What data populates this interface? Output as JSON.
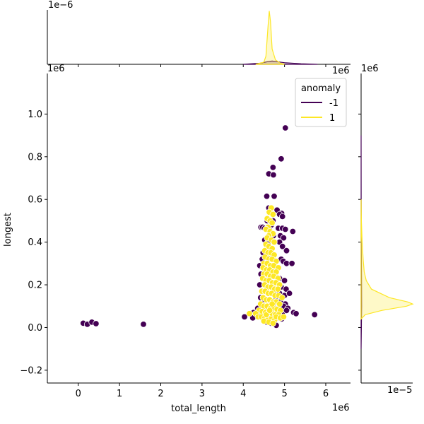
{
  "chart_data": {
    "type": "scatter",
    "subtype": "jointplot",
    "xlabel": "total_length",
    "ylabel": "longest",
    "x_offset_label": "1e6",
    "y_offset_label": "1e6",
    "top_marginal_offset_label": "1e−6",
    "right_marginal_offset_label": "1e−5",
    "right_marginal_top_label": "1e6",
    "xlim": [
      -0.75,
      6.6
    ],
    "ylim": [
      -0.26,
      1.19
    ],
    "x_ticks": [
      0,
      1,
      2,
      3,
      4,
      5,
      6
    ],
    "x_tick_labels": [
      "0",
      "1",
      "2",
      "3",
      "4",
      "5",
      "6"
    ],
    "y_ticks": [
      -0.2,
      0.0,
      0.2,
      0.4,
      0.6,
      0.8,
      1.0
    ],
    "y_tick_labels": [
      "−0.2",
      "0.0",
      "0.2",
      "0.4",
      "0.6",
      "0.8",
      "1.0"
    ],
    "grid": false,
    "legend": {
      "title": "anomaly",
      "position": "top-right",
      "entries": [
        {
          "label": "-1",
          "color": "#440154"
        },
        {
          "label": "1",
          "color": "#fde725"
        }
      ]
    },
    "series": [
      {
        "name": "-1",
        "color": "#440154",
        "points": [
          [
            0.12,
            0.02
          ],
          [
            0.22,
            0.015
          ],
          [
            0.33,
            0.025
          ],
          [
            0.43,
            0.018
          ],
          [
            1.58,
            0.015
          ],
          [
            5.02,
            0.935
          ],
          [
            4.92,
            0.79
          ],
          [
            4.72,
            0.75
          ],
          [
            4.62,
            0.72
          ],
          [
            4.73,
            0.715
          ],
          [
            4.57,
            0.615
          ],
          [
            4.75,
            0.615
          ],
          [
            4.62,
            0.56
          ],
          [
            4.82,
            0.55
          ],
          [
            4.93,
            0.535
          ],
          [
            4.88,
            0.53
          ],
          [
            4.95,
            0.52
          ],
          [
            4.58,
            0.5
          ],
          [
            4.72,
            0.5
          ],
          [
            4.68,
            0.48
          ],
          [
            4.43,
            0.47
          ],
          [
            4.47,
            0.47
          ],
          [
            4.52,
            0.465
          ],
          [
            4.63,
            0.46
          ],
          [
            4.85,
            0.465
          ],
          [
            4.95,
            0.465
          ],
          [
            5.02,
            0.46
          ],
          [
            5.2,
            0.45
          ],
          [
            4.73,
            0.43
          ],
          [
            4.9,
            0.43
          ],
          [
            4.98,
            0.42
          ],
          [
            4.52,
            0.41
          ],
          [
            4.6,
            0.4
          ],
          [
            4.88,
            0.4
          ],
          [
            4.95,
            0.38
          ],
          [
            5.05,
            0.36
          ],
          [
            4.48,
            0.35
          ],
          [
            4.63,
            0.34
          ],
          [
            4.72,
            0.33
          ],
          [
            4.92,
            0.32
          ],
          [
            4.46,
            0.32
          ],
          [
            4.4,
            0.29
          ],
          [
            4.5,
            0.28
          ],
          [
            4.58,
            0.27
          ],
          [
            4.82,
            0.28
          ],
          [
            4.97,
            0.31
          ],
          [
            5.05,
            0.3
          ],
          [
            5.18,
            0.3
          ],
          [
            4.43,
            0.25
          ],
          [
            4.52,
            0.24
          ],
          [
            4.6,
            0.23
          ],
          [
            4.78,
            0.25
          ],
          [
            4.88,
            0.23
          ],
          [
            5.0,
            0.22
          ],
          [
            4.4,
            0.2
          ],
          [
            4.55,
            0.21
          ],
          [
            4.7,
            0.2
          ],
          [
            4.92,
            0.19
          ],
          [
            5.04,
            0.18
          ],
          [
            4.48,
            0.17
          ],
          [
            4.6,
            0.16
          ],
          [
            4.75,
            0.17
          ],
          [
            4.88,
            0.16
          ],
          [
            5.0,
            0.15
          ],
          [
            5.12,
            0.16
          ],
          [
            4.42,
            0.14
          ],
          [
            4.52,
            0.13
          ],
          [
            4.68,
            0.12
          ],
          [
            4.78,
            0.13
          ],
          [
            4.9,
            0.12
          ],
          [
            5.02,
            0.11
          ],
          [
            4.35,
            0.09
          ],
          [
            4.47,
            0.1
          ],
          [
            4.58,
            0.09
          ],
          [
            4.72,
            0.1
          ],
          [
            4.85,
            0.09
          ],
          [
            4.98,
            0.1
          ],
          [
            5.08,
            0.09
          ],
          [
            4.25,
            0.07
          ],
          [
            4.4,
            0.06
          ],
          [
            4.53,
            0.07
          ],
          [
            4.65,
            0.06
          ],
          [
            4.8,
            0.07
          ],
          [
            4.95,
            0.06
          ],
          [
            5.05,
            0.08
          ],
          [
            5.22,
            0.07
          ],
          [
            5.28,
            0.065
          ],
          [
            4.03,
            0.05
          ],
          [
            4.23,
            0.045
          ],
          [
            4.52,
            0.04
          ],
          [
            4.62,
            0.035
          ],
          [
            4.7,
            0.03
          ],
          [
            4.82,
            0.045
          ],
          [
            4.93,
            0.04
          ],
          [
            5.73,
            0.06
          ],
          [
            4.8,
            0.01
          ],
          [
            4.57,
            0.025
          ],
          [
            4.67,
            0.02
          ]
        ]
      },
      {
        "name": "1",
        "color": "#fde725",
        "points": [
          [
            4.68,
            0.56
          ],
          [
            4.63,
            0.54
          ],
          [
            4.72,
            0.53
          ],
          [
            4.58,
            0.51
          ],
          [
            4.65,
            0.5
          ],
          [
            4.7,
            0.49
          ],
          [
            4.6,
            0.47
          ],
          [
            4.55,
            0.46
          ],
          [
            4.65,
            0.45
          ],
          [
            4.72,
            0.44
          ],
          [
            4.62,
            0.43
          ],
          [
            4.58,
            0.42
          ],
          [
            4.68,
            0.41
          ],
          [
            4.75,
            0.4
          ],
          [
            4.55,
            0.39
          ],
          [
            4.62,
            0.38
          ],
          [
            4.7,
            0.37
          ],
          [
            4.52,
            0.36
          ],
          [
            4.6,
            0.35
          ],
          [
            4.67,
            0.35
          ],
          [
            4.75,
            0.34
          ],
          [
            4.53,
            0.33
          ],
          [
            4.62,
            0.32
          ],
          [
            4.7,
            0.32
          ],
          [
            4.8,
            0.31
          ],
          [
            4.5,
            0.3
          ],
          [
            4.58,
            0.3
          ],
          [
            4.66,
            0.29
          ],
          [
            4.74,
            0.29
          ],
          [
            4.85,
            0.28
          ],
          [
            4.48,
            0.28
          ],
          [
            4.56,
            0.27
          ],
          [
            4.64,
            0.27
          ],
          [
            4.72,
            0.26
          ],
          [
            4.8,
            0.26
          ],
          [
            4.5,
            0.25
          ],
          [
            4.58,
            0.25
          ],
          [
            4.66,
            0.24
          ],
          [
            4.74,
            0.24
          ],
          [
            4.84,
            0.23
          ],
          [
            4.47,
            0.23
          ],
          [
            4.55,
            0.22
          ],
          [
            4.63,
            0.22
          ],
          [
            4.71,
            0.21
          ],
          [
            4.79,
            0.21
          ],
          [
            4.88,
            0.2
          ],
          [
            4.52,
            0.2
          ],
          [
            4.6,
            0.19
          ],
          [
            4.68,
            0.19
          ],
          [
            4.76,
            0.18
          ],
          [
            4.84,
            0.18
          ],
          [
            4.45,
            0.17
          ],
          [
            4.53,
            0.17
          ],
          [
            4.61,
            0.16
          ],
          [
            4.69,
            0.16
          ],
          [
            4.77,
            0.15
          ],
          [
            4.86,
            0.15
          ],
          [
            4.94,
            0.14
          ],
          [
            4.48,
            0.14
          ],
          [
            4.56,
            0.13
          ],
          [
            4.64,
            0.13
          ],
          [
            4.72,
            0.12
          ],
          [
            4.8,
            0.12
          ],
          [
            4.88,
            0.11
          ],
          [
            4.42,
            0.11
          ],
          [
            4.5,
            0.1
          ],
          [
            4.58,
            0.1
          ],
          [
            4.66,
            0.09
          ],
          [
            4.74,
            0.09
          ],
          [
            4.82,
            0.085
          ],
          [
            4.9,
            0.08
          ],
          [
            4.38,
            0.08
          ],
          [
            4.46,
            0.075
          ],
          [
            4.54,
            0.07
          ],
          [
            4.62,
            0.07
          ],
          [
            4.7,
            0.065
          ],
          [
            4.78,
            0.06
          ],
          [
            4.86,
            0.06
          ],
          [
            4.3,
            0.065
          ],
          [
            4.36,
            0.05
          ],
          [
            4.44,
            0.05
          ],
          [
            4.52,
            0.045
          ],
          [
            4.6,
            0.04
          ],
          [
            4.68,
            0.04
          ],
          [
            4.76,
            0.035
          ],
          [
            4.15,
            0.065
          ],
          [
            4.5,
            0.03
          ],
          [
            4.62,
            0.025
          ],
          [
            4.72,
            0.02
          ],
          [
            4.8,
            0.05
          ],
          [
            4.9,
            0.045
          ],
          [
            4.98,
            0.05
          ],
          [
            4.56,
            0.06
          ],
          [
            4.64,
            0.08
          ],
          [
            4.7,
            0.11
          ]
        ]
      }
    ],
    "marginal_x_kde": [
      {
        "name": "-1",
        "color": "#440154",
        "x": [
          4.0,
          4.4,
          4.6,
          4.7,
          4.8,
          5.0,
          5.4,
          5.8
        ],
        "density": [
          0.0,
          0.02,
          0.05,
          0.06,
          0.05,
          0.03,
          0.01,
          0.0
        ]
      },
      {
        "name": "1",
        "color": "#fde725",
        "x": [
          4.3,
          4.5,
          4.55,
          4.6,
          4.63,
          4.66,
          4.7,
          4.78,
          4.9,
          5.0
        ],
        "density": [
          0.0,
          0.04,
          0.15,
          0.7,
          0.98,
          0.78,
          0.28,
          0.08,
          0.02,
          0.0
        ]
      }
    ],
    "marginal_y_kde": [
      {
        "name": "-1",
        "color": "#440154",
        "y": [
          -0.1,
          0.0,
          0.1,
          0.2,
          0.4,
          0.6,
          0.9
        ],
        "density": [
          0.0,
          0.005,
          0.01,
          0.008,
          0.004,
          0.002,
          0.0
        ]
      },
      {
        "name": "1",
        "color": "#fde725",
        "y": [
          0.04,
          0.06,
          0.08,
          0.1,
          0.11,
          0.12,
          0.14,
          0.18,
          0.22,
          0.26,
          0.32,
          0.4,
          0.5,
          0.6
        ],
        "density": [
          0.0,
          0.08,
          0.4,
          0.88,
          1.0,
          0.9,
          0.55,
          0.2,
          0.1,
          0.06,
          0.04,
          0.02,
          0.005,
          0.0
        ]
      }
    ]
  }
}
